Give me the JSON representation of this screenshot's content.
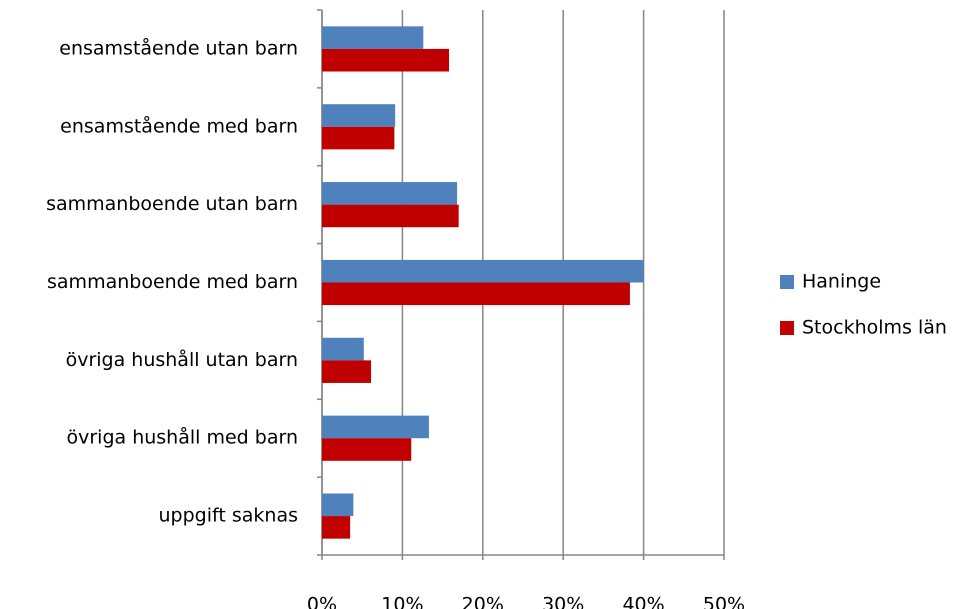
{
  "chart_data": {
    "type": "hbar",
    "categories": [
      "ensamstående utan barn",
      "ensamstående med barn",
      "sammanboende utan barn",
      "sammanboende med barn",
      "övriga hushåll utan barn",
      "övriga hushåll med barn",
      "uppgift saknas"
    ],
    "series": [
      {
        "name": "Haninge",
        "color": "#4f81bd",
        "values": [
          12.6,
          9.1,
          16.8,
          40.0,
          5.2,
          13.3,
          3.9
        ]
      },
      {
        "name": "Stockholms län",
        "color": "#c00000",
        "values": [
          15.8,
          9.0,
          17.0,
          38.3,
          6.1,
          11.1,
          3.5
        ]
      }
    ],
    "xlim": [
      0,
      50
    ],
    "xticks": [
      {
        "value": 0,
        "label": "0%"
      },
      {
        "value": 10,
        "label": "10%"
      },
      {
        "value": 20,
        "label": "20%"
      },
      {
        "value": 30,
        "label": "30%"
      },
      {
        "value": 40,
        "label": "40%"
      },
      {
        "value": 50,
        "label": "50%"
      }
    ],
    "grid": true,
    "legend": "right"
  }
}
